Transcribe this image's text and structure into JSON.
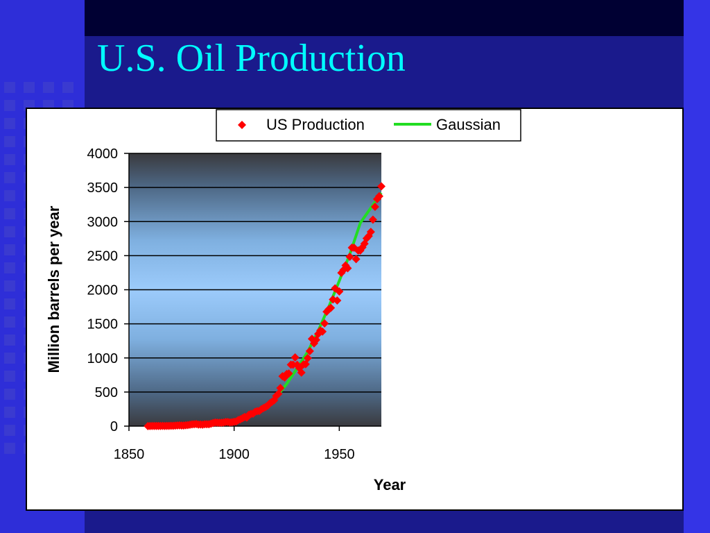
{
  "slide": {
    "title": "U.S. Oil Production",
    "colors": {
      "background": "#1a1a8c",
      "title": "#00ffff",
      "square_pattern": "#3a3ad0"
    }
  },
  "chart_data": {
    "type": "scatter",
    "title": "",
    "xlabel": "Year",
    "ylabel": "Million barrels per year",
    "xlim": [
      1850,
      1970
    ],
    "ylim": [
      0,
      4000
    ],
    "xticks": [
      1850,
      1900,
      1950
    ],
    "yticks": [
      0,
      500,
      1000,
      1500,
      2000,
      2500,
      3000,
      3500,
      4000
    ],
    "grid": true,
    "legend_position": "top",
    "series": [
      {
        "name": "US Production",
        "kind": "scatter",
        "marker": "diamond",
        "color": "#ff0000",
        "x": [
          1859,
          1860,
          1861,
          1862,
          1863,
          1864,
          1865,
          1866,
          1867,
          1868,
          1869,
          1870,
          1871,
          1872,
          1873,
          1874,
          1875,
          1876,
          1877,
          1878,
          1879,
          1880,
          1881,
          1882,
          1883,
          1884,
          1885,
          1886,
          1887,
          1888,
          1889,
          1890,
          1891,
          1892,
          1893,
          1894,
          1895,
          1896,
          1897,
          1898,
          1899,
          1900,
          1901,
          1902,
          1903,
          1904,
          1905,
          1906,
          1907,
          1908,
          1909,
          1910,
          1911,
          1912,
          1913,
          1914,
          1915,
          1916,
          1917,
          1918,
          1919,
          1920,
          1921,
          1922,
          1923,
          1924,
          1925,
          1926,
          1927,
          1928,
          1929,
          1930,
          1931,
          1932,
          1933,
          1934,
          1935,
          1936,
          1937,
          1938,
          1939,
          1940,
          1941,
          1942,
          1943,
          1944,
          1945,
          1946,
          1947,
          1948,
          1949,
          1950,
          1951,
          1952,
          1953,
          1954,
          1955,
          1956,
          1957,
          1958,
          1959,
          1960,
          1961,
          1962,
          1963,
          1964,
          1965,
          1966,
          1967,
          1968,
          1969,
          1970
        ],
        "y": [
          0,
          1,
          2,
          3,
          3,
          2,
          3,
          4,
          3,
          4,
          4,
          5,
          5,
          7,
          10,
          11,
          9,
          9,
          13,
          15,
          20,
          26,
          28,
          30,
          23,
          24,
          22,
          28,
          28,
          28,
          35,
          46,
          54,
          51,
          49,
          49,
          53,
          61,
          61,
          55,
          57,
          64,
          69,
          89,
          100,
          117,
          135,
          126,
          166,
          179,
          183,
          210,
          220,
          223,
          248,
          266,
          281,
          301,
          335,
          356,
          378,
          443,
          472,
          558,
          732,
          714,
          764,
          771,
          901,
          901,
          1007,
          898,
          851,
          785,
          906,
          908,
          997,
          1100,
          1280,
          1214,
          1265,
          1353,
          1402,
          1387,
          1506,
          1678,
          1714,
          1734,
          1857,
          2020,
          1842,
          1974,
          2248,
          2290,
          2357,
          2315,
          2484,
          2617,
          2617,
          2449,
          2575,
          2575,
          2622,
          2676,
          2753,
          2787,
          2849,
          3028,
          3216,
          3329,
          3372,
          3517
        ]
      },
      {
        "name": "Gaussian",
        "kind": "line",
        "color": "#22dd22",
        "x": [
          1859,
          1870,
          1880,
          1890,
          1900,
          1905,
          1910,
          1915,
          1920,
          1925,
          1930,
          1935,
          1940,
          1945,
          1950,
          1955,
          1960,
          1965,
          1970
        ],
        "y": [
          5,
          12,
          25,
          45,
          75,
          110,
          190,
          290,
          420,
          620,
          850,
          1090,
          1400,
          1750,
          2130,
          2520,
          2980,
          3200,
          3420
        ]
      }
    ]
  }
}
